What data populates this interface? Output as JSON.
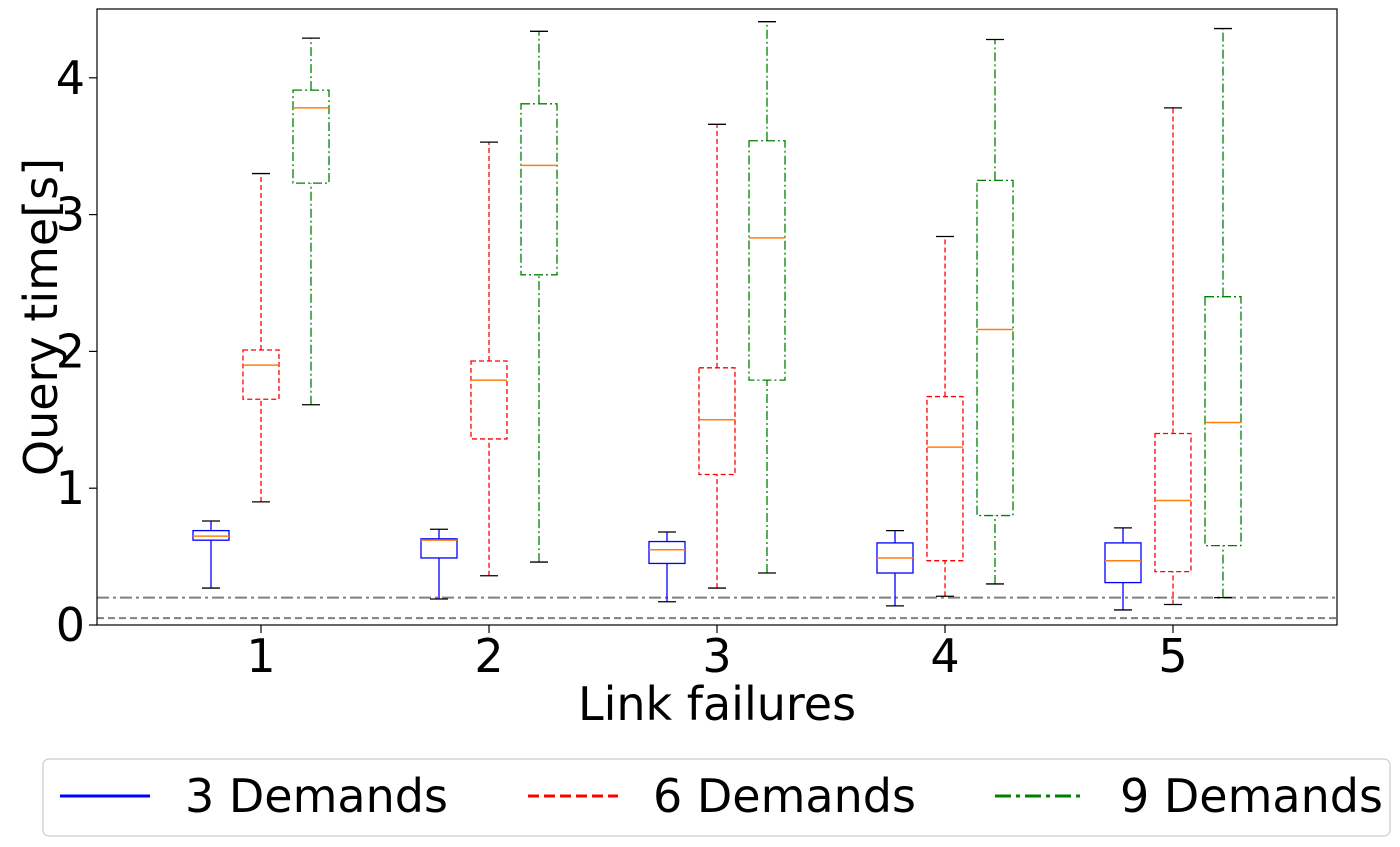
{
  "chart_data": {
    "type": "boxplot",
    "xlabel": "Link failures",
    "ylabel": "Query time[s]",
    "categories": [
      "1",
      "2",
      "3",
      "4",
      "5"
    ],
    "ylim": [
      0,
      4.5
    ],
    "yticks": [
      "0",
      "1",
      "2",
      "3",
      "4"
    ],
    "legend_position": "bottom",
    "reference_lines": [
      {
        "y": 0.2,
        "style": "dashdot",
        "color": "#808080"
      },
      {
        "y": 0.05,
        "style": "dashed",
        "color": "#808080"
      }
    ],
    "median_color": "#ff7f0e",
    "series": [
      {
        "name": "3 Demands",
        "color": "#0000ff",
        "line_style": "solid",
        "boxes": [
          {
            "whisker_low": 0.27,
            "q1": 0.62,
            "median": 0.65,
            "q3": 0.69,
            "whisker_high": 0.76
          },
          {
            "whisker_low": 0.19,
            "q1": 0.49,
            "median": 0.62,
            "q3": 0.63,
            "whisker_high": 0.7
          },
          {
            "whisker_low": 0.17,
            "q1": 0.45,
            "median": 0.55,
            "q3": 0.61,
            "whisker_high": 0.68
          },
          {
            "whisker_low": 0.14,
            "q1": 0.38,
            "median": 0.49,
            "q3": 0.6,
            "whisker_high": 0.69
          },
          {
            "whisker_low": 0.11,
            "q1": 0.31,
            "median": 0.47,
            "q3": 0.6,
            "whisker_high": 0.71
          }
        ]
      },
      {
        "name": "6 Demands",
        "color": "#ff0000",
        "line_style": "dashed",
        "boxes": [
          {
            "whisker_low": 0.9,
            "q1": 1.65,
            "median": 1.9,
            "q3": 2.01,
            "whisker_high": 3.3
          },
          {
            "whisker_low": 0.36,
            "q1": 1.36,
            "median": 1.79,
            "q3": 1.93,
            "whisker_high": 3.53
          },
          {
            "whisker_low": 0.27,
            "q1": 1.1,
            "median": 1.5,
            "q3": 1.88,
            "whisker_high": 3.66
          },
          {
            "whisker_low": 0.21,
            "q1": 0.47,
            "median": 1.3,
            "q3": 1.67,
            "whisker_high": 2.84
          },
          {
            "whisker_low": 0.15,
            "q1": 0.39,
            "median": 0.91,
            "q3": 1.4,
            "whisker_high": 3.78
          }
        ]
      },
      {
        "name": "9 Demands",
        "color": "#008000",
        "line_style": "dashdot",
        "boxes": [
          {
            "whisker_low": 1.61,
            "q1": 3.23,
            "median": 3.78,
            "q3": 3.91,
            "whisker_high": 4.29
          },
          {
            "whisker_low": 0.46,
            "q1": 2.56,
            "median": 3.36,
            "q3": 3.81,
            "whisker_high": 4.34
          },
          {
            "whisker_low": 0.38,
            "q1": 1.79,
            "median": 2.83,
            "q3": 3.54,
            "whisker_high": 4.41
          },
          {
            "whisker_low": 0.3,
            "q1": 0.8,
            "median": 2.16,
            "q3": 3.25,
            "whisker_high": 4.28
          },
          {
            "whisker_low": 0.2,
            "q1": 0.58,
            "median": 1.48,
            "q3": 2.4,
            "whisker_high": 4.36
          }
        ]
      }
    ]
  }
}
